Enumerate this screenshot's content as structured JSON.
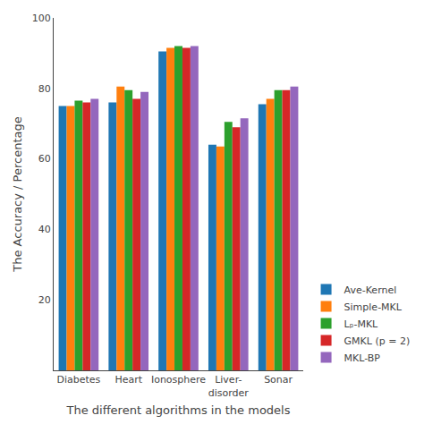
{
  "chart_data": {
    "type": "bar",
    "xlabel": "The different algorithms in the models",
    "ylabel": "The Accuracy / Percentage",
    "categories": [
      "Diabetes",
      "Heart",
      "Ionosphere",
      "Liver-\ndisorder",
      "Sonar"
    ],
    "series": [
      {
        "name": "Ave-Kernel",
        "values": [
          75.0,
          76.0,
          90.5,
          64.0,
          75.5
        ]
      },
      {
        "name": "Simple-MKL",
        "values": [
          75.0,
          80.5,
          91.5,
          63.5,
          77.0
        ]
      },
      {
        "name": "Lₚ-MKL",
        "values": [
          76.5,
          79.5,
          92.0,
          70.5,
          79.5
        ]
      },
      {
        "name": "GMKL (p = 2)",
        "values": [
          76.0,
          77.0,
          91.5,
          69.0,
          79.5
        ]
      },
      {
        "name": "MKL-BP",
        "values": [
          77.0,
          79.0,
          92.0,
          71.5,
          80.5
        ]
      }
    ],
    "ylim": [
      0,
      100
    ],
    "yticks": [
      20,
      40,
      60,
      80,
      100
    ],
    "grid": false,
    "legend": "lower right"
  }
}
